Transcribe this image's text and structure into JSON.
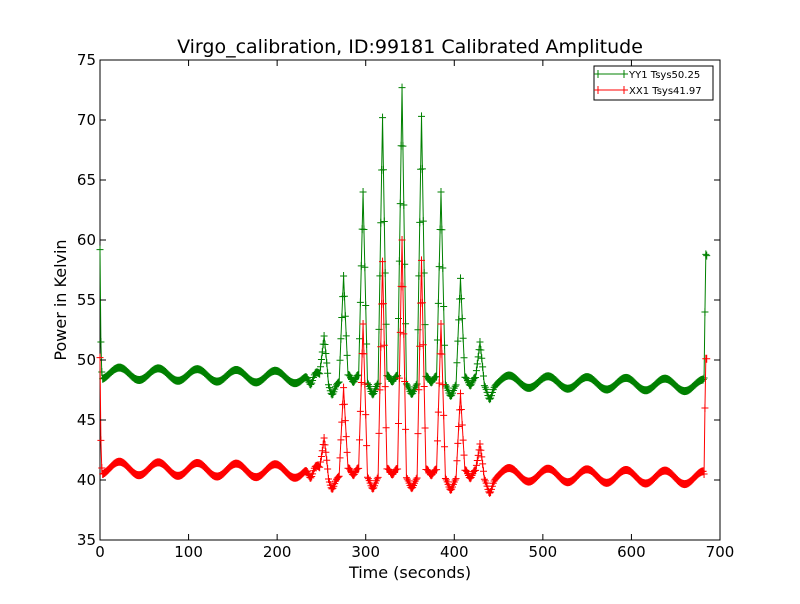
{
  "chart_data": {
    "type": "line",
    "title": "Virgo_calibration, ID:99181 Calibrated Amplitude",
    "xlabel": "Time (seconds)",
    "ylabel": "Power in Kelvin",
    "xlim": [
      0,
      700
    ],
    "ylim": [
      35,
      75
    ],
    "xticks": [
      0,
      100,
      200,
      300,
      400,
      500,
      600,
      700
    ],
    "yticks": [
      35,
      40,
      45,
      50,
      55,
      60,
      65,
      70,
      75
    ],
    "grid": false,
    "legend_position": "top-right",
    "series": [
      {
        "name": "YY1 Tsys50.25",
        "color": "#008000",
        "marker": "+",
        "baseline": {
          "mean": 48.9,
          "amplitude": 0.5,
          "period": 44,
          "drift_per_second": -0.0015
        },
        "spikes": [
          {
            "x": 253,
            "peak": 52.0,
            "width": 5
          },
          {
            "x": 275,
            "peak": 57.0,
            "width": 5
          },
          {
            "x": 297,
            "peak": 64.0,
            "width": 5
          },
          {
            "x": 319,
            "peak": 70.2,
            "width": 5
          },
          {
            "x": 341,
            "peak": 72.7,
            "width": 5
          },
          {
            "x": 363,
            "peak": 70.3,
            "width": 5
          },
          {
            "x": 385,
            "peak": 64.0,
            "width": 5
          },
          {
            "x": 407,
            "peak": 56.8,
            "width": 5
          },
          {
            "x": 429,
            "peak": 51.5,
            "width": 5
          }
        ],
        "dips": [
          {
            "x": 238,
            "depth": 1.0
          },
          {
            "x": 262,
            "depth": 0.9
          },
          {
            "x": 286,
            "depth": 0.8
          },
          {
            "x": 308,
            "depth": 0.8
          },
          {
            "x": 330,
            "depth": 0.7
          },
          {
            "x": 352,
            "depth": 0.7
          },
          {
            "x": 374,
            "depth": 0.7
          },
          {
            "x": 396,
            "depth": 0.8
          },
          {
            "x": 418,
            "depth": 0.9
          },
          {
            "x": 440,
            "depth": 1.0
          }
        ],
        "start_points": [
          [
            0,
            59.2
          ],
          [
            1,
            51.5
          ],
          [
            2,
            49.0
          ]
        ],
        "end_points": [
          [
            682,
            48.5
          ],
          [
            683,
            54.0
          ],
          [
            684,
            58.8
          ],
          [
            685,
            58.7
          ]
        ]
      },
      {
        "name": "XX1 Tsys41.97",
        "color": "#ff0000",
        "marker": "+",
        "baseline": {
          "mean": 41.0,
          "amplitude": 0.55,
          "period": 44,
          "drift_per_second": -0.0012
        },
        "spikes": [
          {
            "x": 253,
            "peak": 43.5,
            "width": 5
          },
          {
            "x": 275,
            "peak": 47.7,
            "width": 5
          },
          {
            "x": 297,
            "peak": 53.0,
            "width": 5
          },
          {
            "x": 319,
            "peak": 58.2,
            "width": 5
          },
          {
            "x": 341,
            "peak": 60.0,
            "width": 5
          },
          {
            "x": 363,
            "peak": 58.3,
            "width": 5
          },
          {
            "x": 385,
            "peak": 53.0,
            "width": 5
          },
          {
            "x": 407,
            "peak": 47.2,
            "width": 5
          },
          {
            "x": 429,
            "peak": 43.0,
            "width": 5
          }
        ],
        "dips": [
          {
            "x": 238,
            "depth": 1.0
          },
          {
            "x": 262,
            "depth": 0.9
          },
          {
            "x": 286,
            "depth": 0.8
          },
          {
            "x": 308,
            "depth": 0.8
          },
          {
            "x": 330,
            "depth": 0.7
          },
          {
            "x": 352,
            "depth": 0.7
          },
          {
            "x": 374,
            "depth": 0.7
          },
          {
            "x": 396,
            "depth": 0.8
          },
          {
            "x": 418,
            "depth": 0.9
          },
          {
            "x": 440,
            "depth": 1.0
          }
        ],
        "start_points": [
          [
            0,
            50.2
          ],
          [
            1,
            43.3
          ],
          [
            2,
            41.0
          ]
        ],
        "end_points": [
          [
            682,
            40.5
          ],
          [
            683,
            46.0
          ],
          [
            684,
            50.1
          ],
          [
            685,
            50.1
          ]
        ]
      }
    ]
  }
}
